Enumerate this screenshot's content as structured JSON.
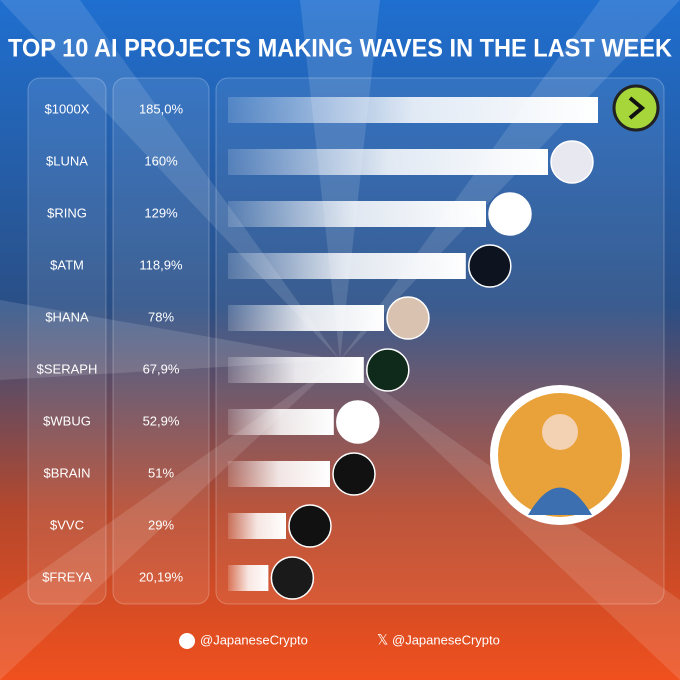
{
  "chart_data": {
    "type": "bar",
    "title": "TOP 10 AI PROJECTS MAKING WAVES IN THE LAST WEEK",
    "categories": [
      "$1000X",
      "$LUNA",
      "$RING",
      "$ATM",
      "$HANA",
      "$SERAPH",
      "$WBUG",
      "$BRAIN",
      "$VVC",
      "$FREYA"
    ],
    "values": [
      185.0,
      160,
      129,
      118.9,
      78,
      67.9,
      52.9,
      51,
      29,
      20.19
    ],
    "value_labels": [
      "185,0%",
      "160%",
      "129%",
      "118,9%",
      "78%",
      "67,9%",
      "52,9%",
      "51%",
      "29%",
      "20,19%"
    ],
    "color": "#ffffff"
  },
  "footer": {
    "telegram": "@JapaneseCrypto",
    "x": "@JapaneseCrypto"
  }
}
